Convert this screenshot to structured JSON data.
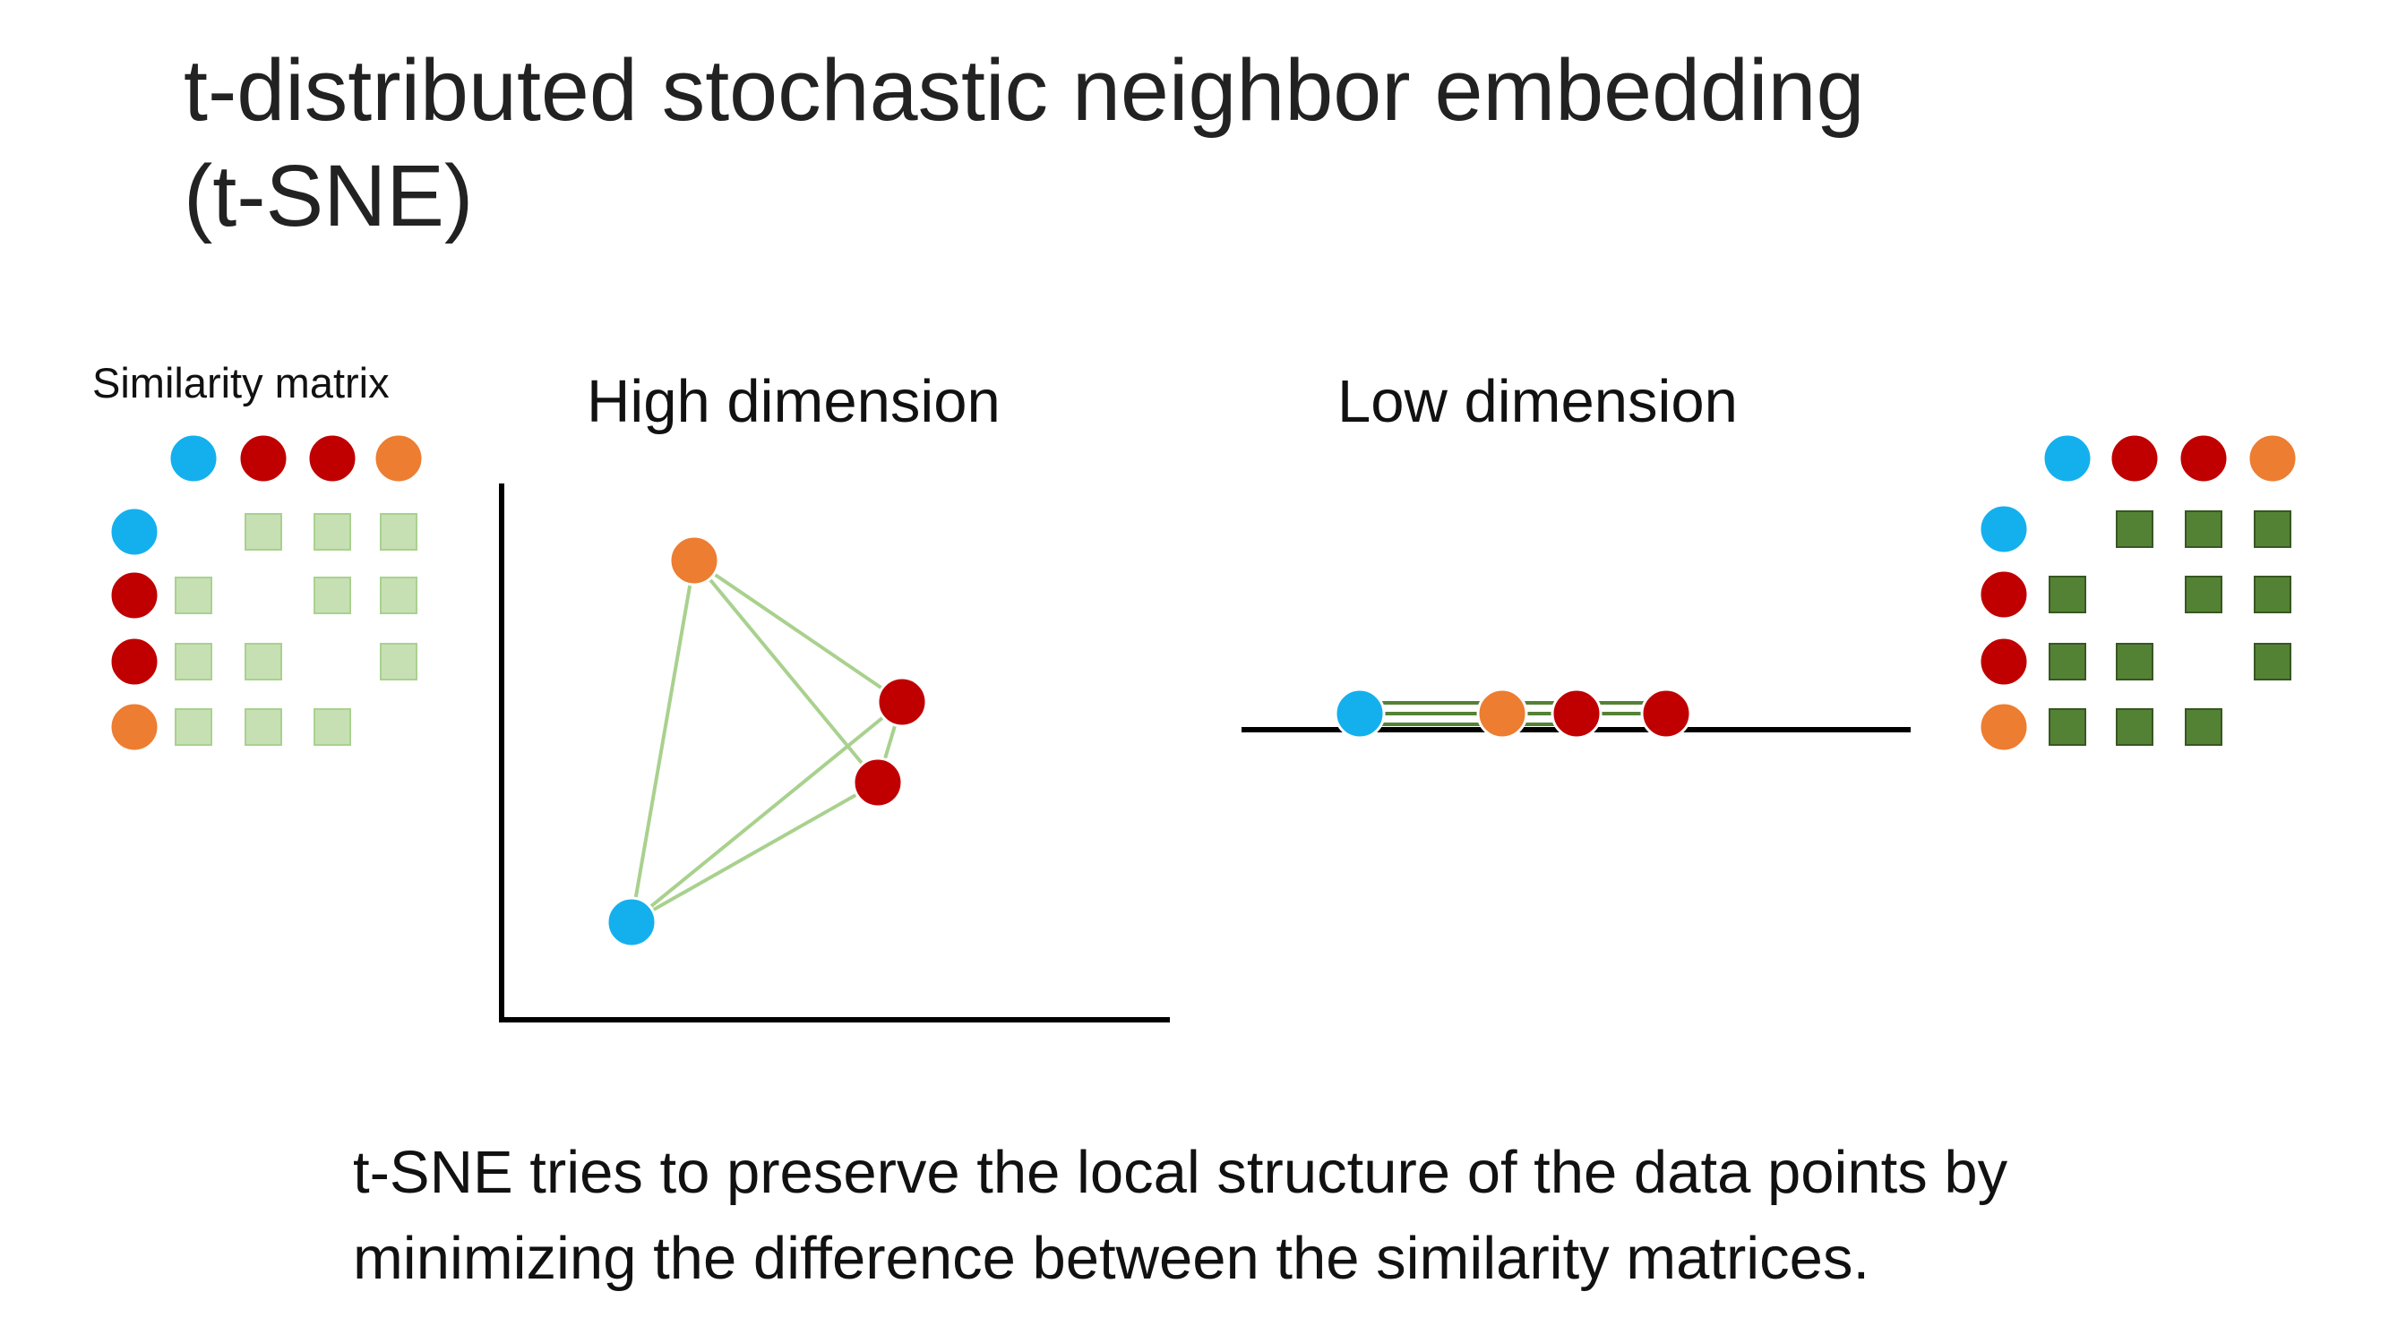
{
  "title": {
    "line1": "t-distributed stochastic neighbor embedding",
    "line2": "(t-SNE)"
  },
  "labels": {
    "similarity_matrix": "Similarity matrix",
    "high_dimension": "High dimension",
    "low_dimension": "Low dimension"
  },
  "caption": {
    "line1": "t-SNE tries to preserve the local structure of the data points by",
    "line2": "minimizing the difference between the similarity matrices."
  },
  "colors": {
    "blue": "#14b0ee",
    "red": "#c00000",
    "orange": "#ed7d31",
    "light_green_fill": "#c6e0b4",
    "light_green_stroke": "#a9d18e",
    "dark_green_fill": "#548235",
    "dark_green_stroke": "#385723",
    "axis": "#000000"
  },
  "points": [
    "blue",
    "red",
    "red",
    "orange"
  ],
  "high_matrix_style": "light-green",
  "low_matrix_style": "dark-green"
}
